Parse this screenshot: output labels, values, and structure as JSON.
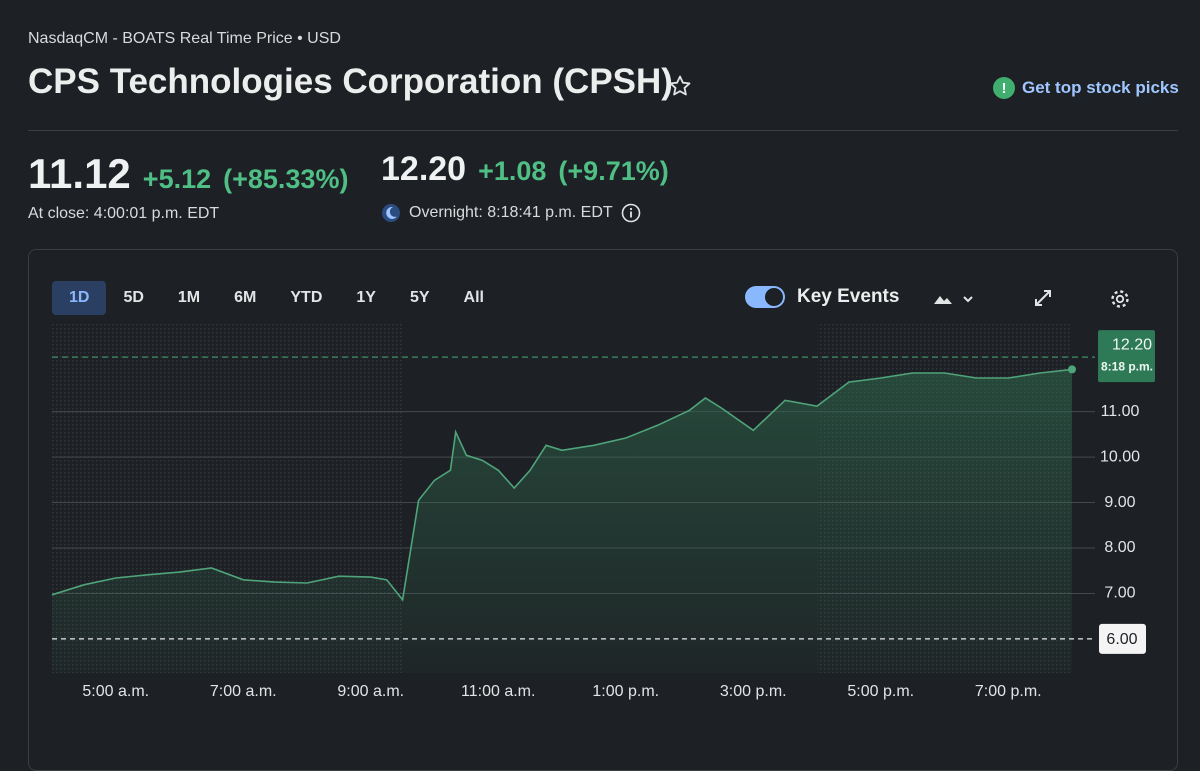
{
  "header": {
    "exchange": "NasdaqCM - BOATS Real Time Price • USD",
    "title": "CPS Technologies Corporation (CPSH)",
    "cta": "Get top stock picks"
  },
  "quote": {
    "close": {
      "price": "11.12",
      "change": "+5.12",
      "percent": "(+85.33%)",
      "time": "At close: 4:00:01 p.m. EDT"
    },
    "overnight": {
      "price": "12.20",
      "change": "+1.08",
      "percent": "(+9.71%)",
      "time": "Overnight: 8:18:41 p.m. EDT"
    }
  },
  "toolbar": {
    "ranges": [
      "1D",
      "5D",
      "1M",
      "6M",
      "YTD",
      "1Y",
      "5Y",
      "All"
    ],
    "active": 0,
    "key_events": "Key Events"
  },
  "chart_data": {
    "type": "line",
    "x": [
      4,
      4.5,
      5,
      5.5,
      6,
      6.5,
      7,
      7.5,
      8,
      8.5,
      9,
      9.25,
      9.5,
      9.75,
      10,
      10.25,
      10.333,
      10.5,
      10.75,
      11,
      11.25,
      11.5,
      11.75,
      12,
      12.5,
      13,
      13.5,
      14,
      14.25,
      14.5,
      15,
      15.5,
      16,
      16.5,
      17,
      17.5,
      18,
      18.5,
      19,
      19.5,
      20
    ],
    "values": [
      6.97,
      7.19,
      7.34,
      7.41,
      7.47,
      7.56,
      7.3,
      7.25,
      7.23,
      7.38,
      7.36,
      7.3,
      6.86,
      9.05,
      9.49,
      9.71,
      10.55,
      10.04,
      9.93,
      9.71,
      9.32,
      9.71,
      10.26,
      10.15,
      10.26,
      10.42,
      10.7,
      11.03,
      11.3,
      11.08,
      10.59,
      11.25,
      11.12,
      11.65,
      11.74,
      11.85,
      11.85,
      11.74,
      11.74,
      11.85,
      11.93
    ],
    "color": "#4fa47a",
    "xlim": [
      4,
      20
    ],
    "xticks": [
      {
        "value": 5,
        "label": "5:00 a.m."
      },
      {
        "value": 7,
        "label": "7:00 a.m."
      },
      {
        "value": 9,
        "label": "9:00 a.m."
      },
      {
        "value": 11,
        "label": "11:00 a.m."
      },
      {
        "value": 13,
        "label": "1:00 p.m."
      },
      {
        "value": 15,
        "label": "3:00 p.m."
      },
      {
        "value": 17,
        "label": "5:00 p.m."
      },
      {
        "value": 19,
        "label": "7:00 p.m."
      }
    ],
    "ylim": [
      5.25,
      12.95
    ],
    "yticks": [
      {
        "value": 7,
        "label": "7.00"
      },
      {
        "value": 8,
        "label": "8.00"
      },
      {
        "value": 9,
        "label": "9.00"
      },
      {
        "value": 10,
        "label": "10.00"
      },
      {
        "value": 11,
        "label": "11.00"
      }
    ],
    "grid": true,
    "shaded_ranges": [
      [
        4,
        9.5
      ],
      [
        16,
        20
      ]
    ],
    "previous_close": {
      "value": 6,
      "label": "6.00"
    },
    "last_tag": {
      "value": 12.2,
      "label": "12.20",
      "time": "8:18 p.m."
    }
  }
}
